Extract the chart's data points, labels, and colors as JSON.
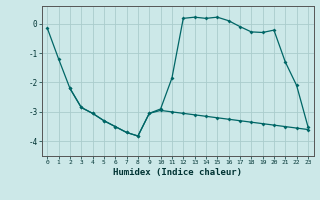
{
  "xlabel": "Humidex (Indice chaleur)",
  "background_color": "#cce8e8",
  "grid_color": "#aacccc",
  "line_color": "#006666",
  "ylim": [
    -4.5,
    0.6
  ],
  "xlim": [
    -0.5,
    23.5
  ],
  "yticks": [
    0,
    -1,
    -2,
    -3,
    -4
  ],
  "xticks": [
    0,
    1,
    2,
    3,
    4,
    5,
    6,
    7,
    8,
    9,
    10,
    11,
    12,
    13,
    14,
    15,
    16,
    17,
    18,
    19,
    20,
    21,
    22,
    23
  ],
  "line1_x": [
    0,
    1,
    2,
    3,
    4,
    5,
    6,
    7,
    8,
    9,
    10,
    11,
    12,
    13,
    14,
    15,
    16,
    17,
    18,
    19,
    20,
    21,
    22,
    23
  ],
  "line1_y": [
    -0.15,
    -1.2,
    -2.2,
    -2.85,
    -3.05,
    -3.3,
    -3.5,
    -3.7,
    -3.82,
    -3.05,
    -2.95,
    -3.0,
    -3.05,
    -3.1,
    -3.15,
    -3.2,
    -3.25,
    -3.3,
    -3.35,
    -3.4,
    -3.45,
    -3.5,
    -3.55,
    -3.6
  ],
  "line2_x": [
    2,
    3,
    4,
    5,
    6,
    7,
    8,
    9,
    10,
    11,
    12,
    13,
    14,
    15,
    16,
    17,
    18,
    19,
    20,
    21,
    22,
    23
  ],
  "line2_y": [
    -2.2,
    -2.85,
    -3.05,
    -3.3,
    -3.5,
    -3.7,
    -3.82,
    -3.05,
    -2.9,
    -1.85,
    0.18,
    0.22,
    0.18,
    0.22,
    0.1,
    -0.1,
    -0.28,
    -0.3,
    -0.22,
    -1.3,
    -2.1,
    -3.5
  ]
}
